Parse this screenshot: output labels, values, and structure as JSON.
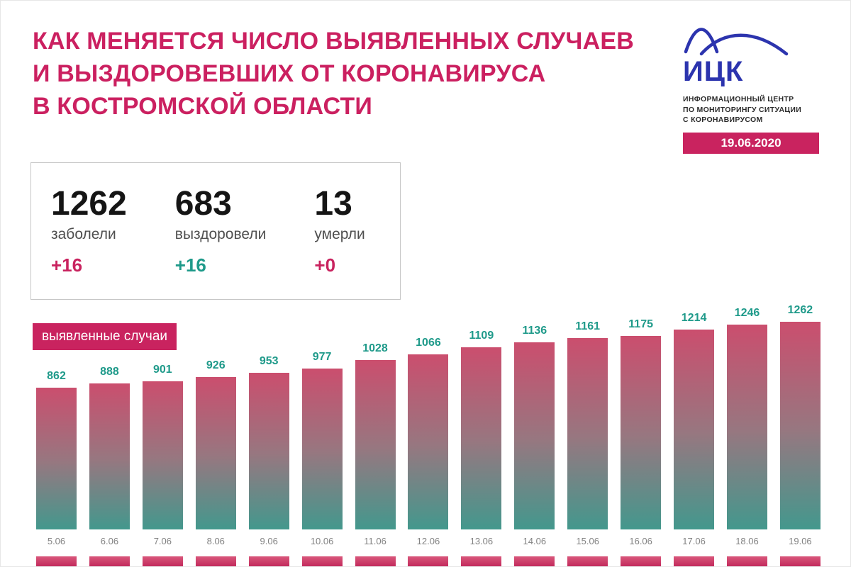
{
  "header": {
    "title_lines": [
      "КАК МЕНЯЕТСЯ ЧИСЛО ВЫЯВЛЕННЫХ СЛУЧАЕВ",
      "И ВЫЗДОРОВЕВШИХ ОТ КОРОНАВИРУСА",
      "В КОСТРОМСКОЙ ОБЛАСТИ"
    ]
  },
  "logo": {
    "abbr": "ИЦК",
    "caption_lines": [
      "ИНФОРМАЦИОННЫЙ ЦЕНТР",
      "ПО МОНИТОРИНГУ СИТУАЦИИ",
      "С КОРОНАВИРУСОМ"
    ],
    "date_badge": "19.06.2020",
    "icon": "curve-icon",
    "accent_blue": "#2c34ae"
  },
  "stats": {
    "items": [
      {
        "value": "1262",
        "label": "заболели",
        "delta": "+16",
        "delta_color": "#c9235f"
      },
      {
        "value": "683",
        "label": "выздоровели",
        "delta": "+16",
        "delta_color": "#1f9a8a"
      },
      {
        "value": "13",
        "label": "умерли",
        "delta": "+0",
        "delta_color": "#c9235f"
      }
    ]
  },
  "chart_data": {
    "type": "bar",
    "title": "выявленные случаи",
    "categories": [
      "5.06",
      "6.06",
      "7.06",
      "8.06",
      "9.06",
      "10.06",
      "11.06",
      "12.06",
      "13.06",
      "14.06",
      "15.06",
      "16.06",
      "17.06",
      "18.06",
      "19.06"
    ],
    "values": [
      862,
      888,
      901,
      926,
      953,
      977,
      1028,
      1066,
      1109,
      1136,
      1161,
      1175,
      1214,
      1246,
      1262
    ],
    "ylim": [
      0,
      1262
    ],
    "grid": false,
    "legend": "none",
    "value_labels": true,
    "value_label_color": "#1f9a8a",
    "bar_gradient_top": "#cb4e6e",
    "bar_gradient_bottom": "#43988d",
    "date_label_color": "#828282"
  },
  "bottom_chart_partial": {
    "type": "bar",
    "bars_visible": 15,
    "color": "#c9235f"
  },
  "colors": {
    "crimson": "#c9235f",
    "teal": "#1f9a8a"
  }
}
